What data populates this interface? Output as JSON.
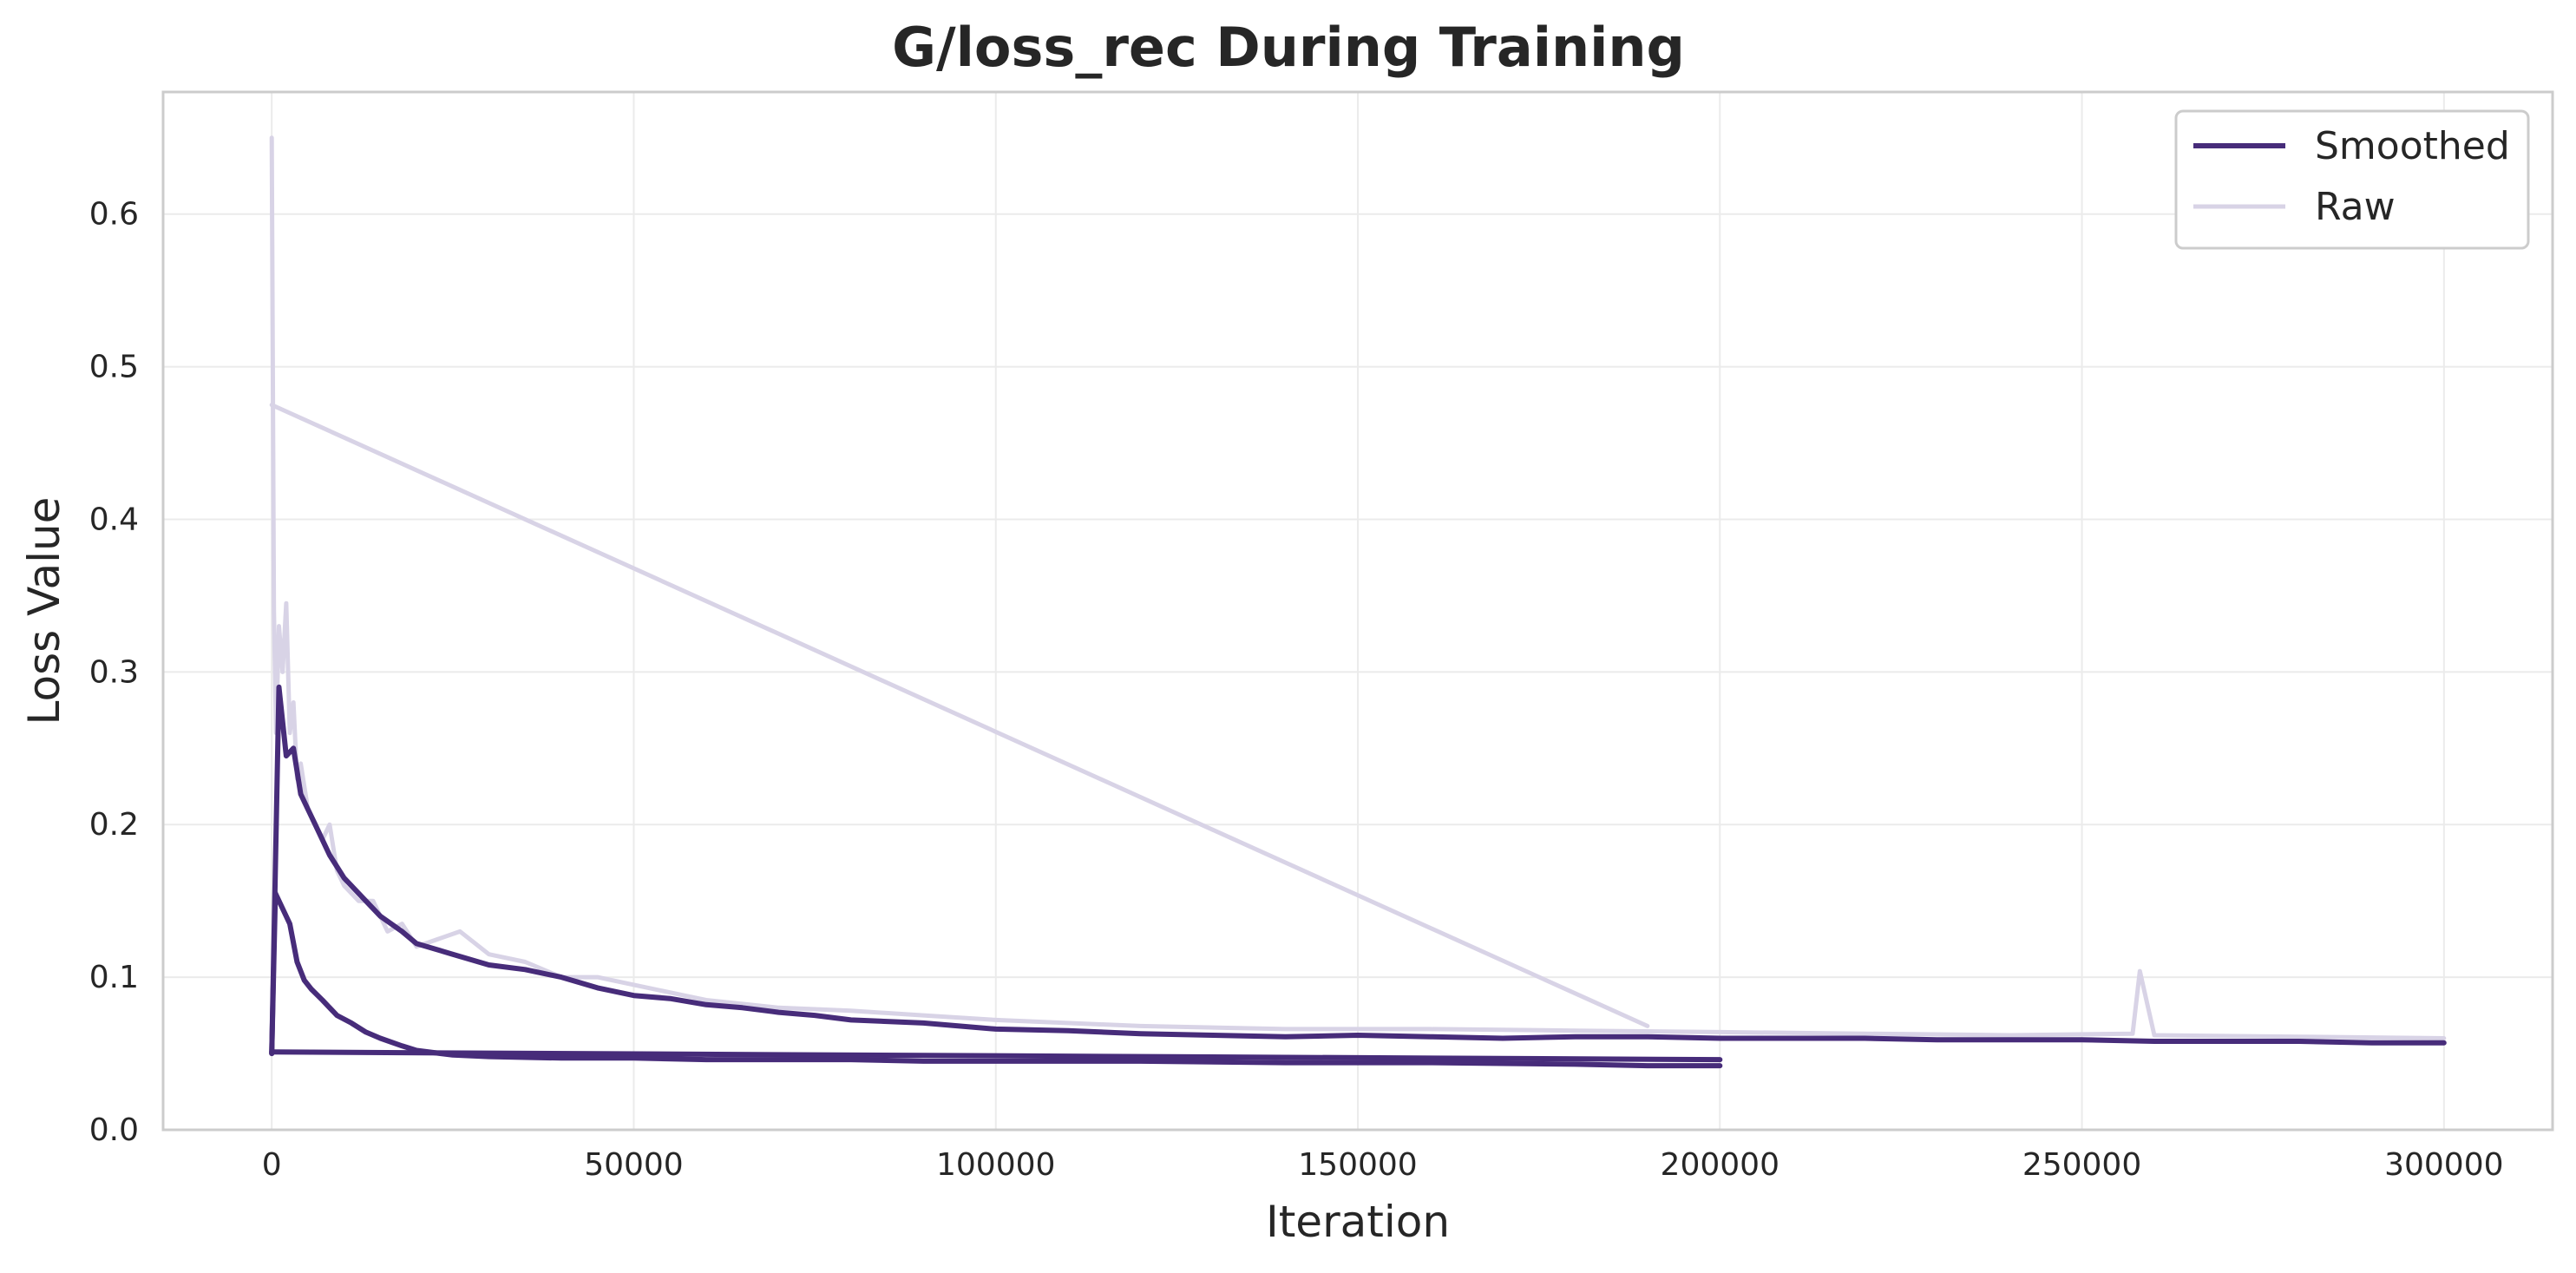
{
  "chart_data": {
    "type": "line",
    "title": "G/loss_rec During Training",
    "xlabel": "Iteration",
    "ylabel": "Loss Value",
    "xlim": [
      -15000,
      315000
    ],
    "ylim": [
      0.0,
      0.68
    ],
    "xticks": [
      0,
      50000,
      100000,
      150000,
      200000,
      250000,
      300000
    ],
    "yticks": [
      0.0,
      0.1,
      0.2,
      0.3,
      0.4,
      0.5,
      0.6
    ],
    "grid": true,
    "legend_position": "top-right",
    "colors": {
      "smoothed": "#472c7a",
      "raw": "#d8d3e6"
    },
    "series": [
      {
        "name": "Smoothed",
        "style": "thick-dark",
        "segments": [
          {
            "x": [
              0,
              1000,
              2000,
              3000,
              4000,
              5000,
              6000,
              8000,
              10000,
              12000,
              15000,
              18000,
              20000,
              25000,
              30000,
              35000,
              40000,
              45000,
              50000,
              55000,
              60000,
              65000,
              70000,
              75000,
              80000,
              90000,
              100000,
              110000,
              120000,
              130000,
              140000,
              150000,
              160000,
              170000,
              180000,
              190000,
              200000,
              210000,
              220000,
              230000,
              240000,
              250000,
              260000,
              270000,
              280000,
              290000,
              300000
            ],
            "y": [
              0.05,
              0.29,
              0.245,
              0.25,
              0.22,
              0.21,
              0.2,
              0.18,
              0.165,
              0.155,
              0.14,
              0.13,
              0.122,
              0.115,
              0.108,
              0.105,
              0.1,
              0.093,
              0.088,
              0.086,
              0.082,
              0.08,
              0.077,
              0.075,
              0.072,
              0.07,
              0.066,
              0.065,
              0.063,
              0.062,
              0.061,
              0.062,
              0.061,
              0.06,
              0.061,
              0.061,
              0.06,
              0.06,
              0.06,
              0.059,
              0.059,
              0.059,
              0.058,
              0.058,
              0.058,
              0.057,
              0.057
            ]
          },
          {
            "x": [
              0,
              500,
              1500,
              2500,
              3500,
              4500,
              5500,
              7000,
              9000,
              11000,
              13000,
              15000,
              18000,
              20000,
              25000,
              30000,
              40000,
              50000,
              60000,
              70000,
              80000,
              90000,
              100000,
              120000,
              140000,
              160000,
              180000,
              190000,
              200000
            ],
            "y": [
              0.05,
              0.155,
              0.145,
              0.135,
              0.11,
              0.098,
              0.092,
              0.085,
              0.075,
              0.07,
              0.064,
              0.06,
              0.055,
              0.052,
              0.049,
              0.048,
              0.047,
              0.047,
              0.046,
              0.046,
              0.046,
              0.045,
              0.045,
              0.045,
              0.044,
              0.044,
              0.043,
              0.042,
              0.042
            ]
          },
          {
            "x": [
              0,
              200000
            ],
            "y": [
              0.051,
              0.046
            ]
          }
        ]
      },
      {
        "name": "Raw",
        "style": "thin-light",
        "segments": [
          {
            "x": [
              0,
              300,
              600,
              1000,
              1500,
              2000,
              2500,
              3000,
              3500,
              4000,
              5000,
              6000,
              7000,
              8000,
              9000,
              10000,
              12000,
              14000,
              16000,
              18000,
              20000,
              23000,
              26000,
              30000,
              35000,
              40000,
              45000,
              50000,
              55000,
              60000,
              70000,
              80000,
              90000,
              100000,
              120000,
              140000,
              160000,
              180000,
              200000,
              220000,
              240000,
              257000,
              258000,
              260000,
              280000,
              300000
            ],
            "y": [
              0.65,
              0.34,
              0.26,
              0.33,
              0.3,
              0.345,
              0.26,
              0.28,
              0.23,
              0.24,
              0.21,
              0.2,
              0.19,
              0.2,
              0.17,
              0.16,
              0.15,
              0.15,
              0.13,
              0.135,
              0.12,
              0.125,
              0.13,
              0.115,
              0.11,
              0.1,
              0.1,
              0.095,
              0.09,
              0.085,
              0.08,
              0.078,
              0.075,
              0.072,
              0.068,
              0.066,
              0.066,
              0.065,
              0.064,
              0.063,
              0.062,
              0.063,
              0.104,
              0.062,
              0.061,
              0.06
            ]
          },
          {
            "x": [
              0,
              190000
            ],
            "y": [
              0.475,
              0.068
            ]
          }
        ]
      }
    ]
  }
}
